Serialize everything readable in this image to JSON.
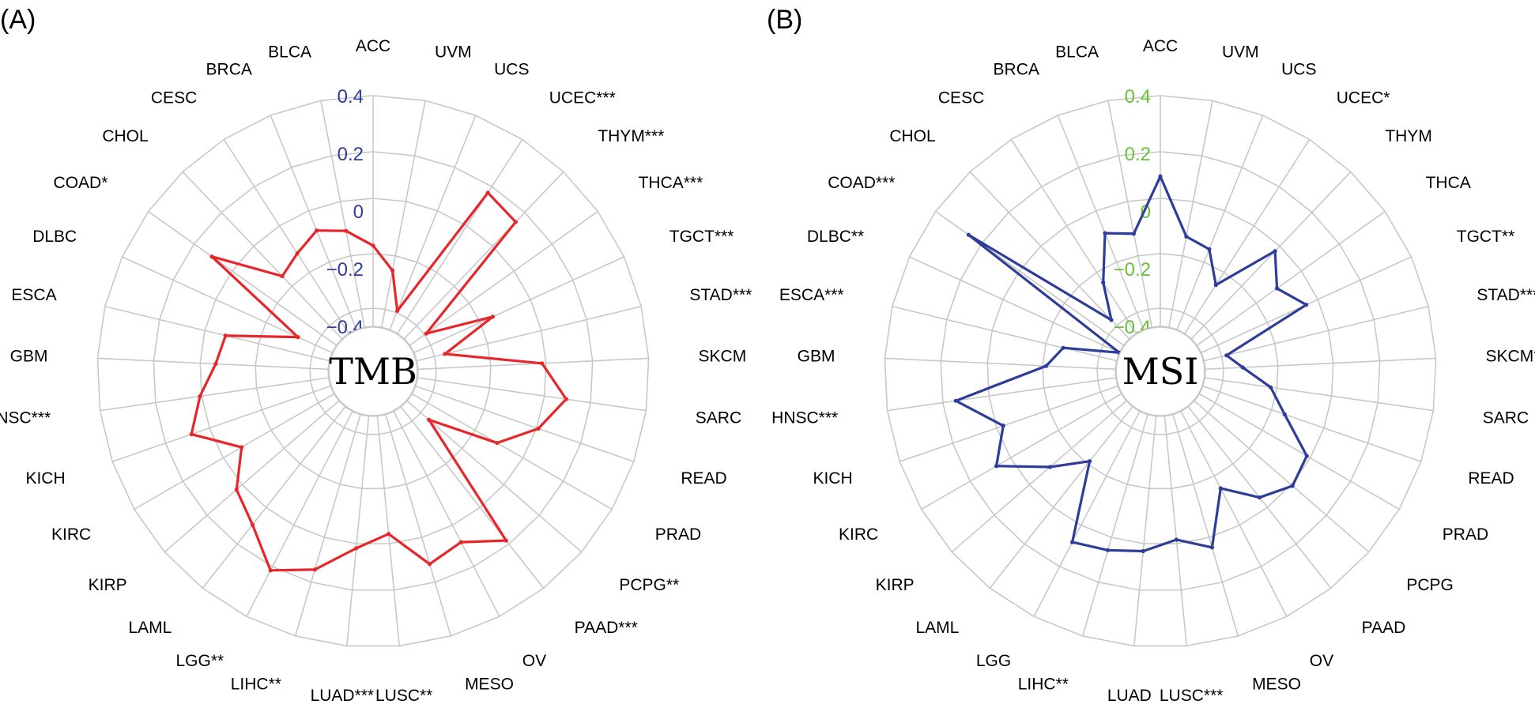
{
  "chart_data": [
    {
      "type": "radar",
      "panel_label": "(A)",
      "center_label": "TMB",
      "series_color": "#e8262a",
      "tick_color": "#2e3d9a",
      "rlim": [
        -0.4,
        0.4
      ],
      "ticks": [
        0.4,
        0.2,
        0,
        -0.2,
        -0.4
      ],
      "tick_labels": [
        "0.4",
        "0.2",
        "0",
        "−0.2",
        "−0.4"
      ],
      "categories": [
        "ACC",
        "UVM",
        "UCS",
        "UCEC***",
        "THYM***",
        "THCA***",
        "TGCT***",
        "STAD***",
        "SKCM",
        "SARC",
        "READ",
        "PRAD",
        "PCPG**",
        "PAAD***",
        "OV",
        "MESO",
        "LUSC**",
        "LUAD***",
        "LIHC**",
        "LGG**",
        "LAML",
        "KIRP",
        "KIRC",
        "KICH",
        "HNSC***",
        "GBM",
        "ESCA",
        "DLBC",
        "COAD*",
        "CHOL",
        "CESC",
        "BRCA",
        "BLCA"
      ],
      "values": [
        -0.12,
        -0.2,
        -0.33,
        0.18,
        0.16,
        -0.33,
        -0.1,
        -0.3,
        0.03,
        0.12,
        0.05,
        -0.06,
        -0.3,
        0.19,
        0.11,
        0.14,
        0.01,
        0.06,
        0.16,
        0.22,
        0.12,
        0.07,
        -0.03,
        0.11,
        0.05,
        -0.01,
        -0.03,
        -0.27,
        0.13,
        -0.1,
        -0.07,
        -0.03,
        -0.06
      ]
    },
    {
      "type": "radar",
      "panel_label": "(B)",
      "center_label": "MSI",
      "series_color": "#2e3d9a",
      "tick_color": "#6abf3a",
      "rlim": [
        -0.4,
        0.4
      ],
      "ticks": [
        0.4,
        0.2,
        0,
        -0.2,
        -0.4
      ],
      "tick_labels": [
        "0.4",
        "0.2",
        "0",
        "−0.2",
        "−0.4"
      ],
      "categories": [
        "ACC",
        "UVM",
        "UCS",
        "UCEC*",
        "THYM",
        "THCA",
        "TGCT**",
        "STAD***",
        "SKCM***",
        "SARC",
        "READ",
        "PRAD",
        "PCPG",
        "PAAD",
        "OV",
        "MESO",
        "LUSC***",
        "LUAD",
        "LIHC**",
        "LGG",
        "LAML",
        "KIRP",
        "KIRC",
        "KICH",
        "HNSC***",
        "GBM",
        "ESCA***",
        "DLBC**",
        "COAD***",
        "CHOL",
        "CESC",
        "BRCA",
        "BLCA"
      ],
      "values": [
        0.12,
        -0.08,
        -0.1,
        -0.2,
        0.02,
        -0.06,
        0.0,
        -0.32,
        -0.27,
        -0.17,
        -0.1,
        0.03,
        0.05,
        0.0,
        -0.1,
        0.08,
        0.03,
        0.07,
        0.09,
        0.11,
        -0.16,
        -0.05,
        0.1,
        0.02,
        0.16,
        -0.16,
        -0.21,
        -0.4,
        0.26,
        -0.31,
        -0.19,
        -0.04,
        -0.07
      ]
    }
  ]
}
